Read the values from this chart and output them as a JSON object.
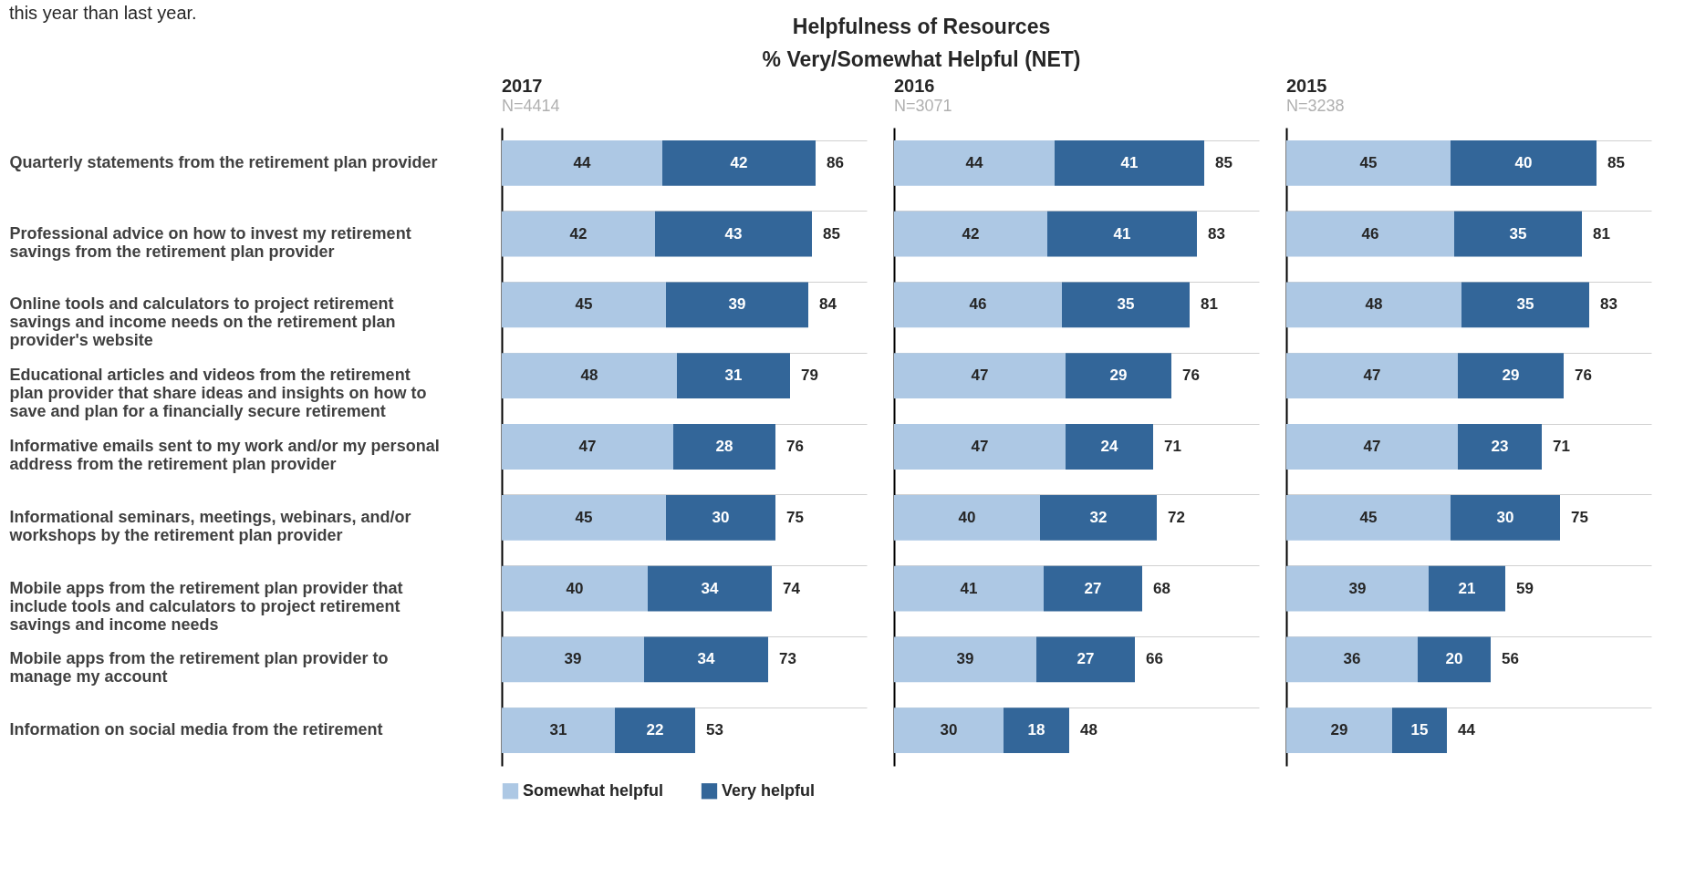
{
  "chart_data": [
    {
      "type": "bar",
      "orientation": "horizontal",
      "stacked": true,
      "title": "2017",
      "subtitle": "N=4414",
      "annotations": [
        "this year than last year.",
        "Helpfulness of Resources",
        "% Very/Somewhat Helpful (NET)"
      ],
      "categories": [
        "Quarterly statements from the retirement plan provider",
        "Professional advice on how to invest my retirement savings from the retirement plan provider",
        "Online tools and calculators to project retirement savings and income needs on the retirement plan provider's website",
        "Educational articles and videos from the retirement plan provider that share ideas and insights on how to save and plan for a financially secure retirement",
        "Informative emails sent to my work and/or my personal address from the retirement plan provider",
        "Informational seminars, meetings, webinars, and/or workshops by the retirement plan provider",
        "Mobile apps from the retirement plan provider that include tools and calculators to project retirement savings and income needs",
        "Mobile apps from the retirement plan provider to manage my account",
        "Information on social media from the retirement"
      ],
      "series": [
        {
          "name": "Somewhat helpful",
          "color": "#adc8e4",
          "values": [
            44,
            42,
            45,
            48,
            47,
            45,
            40,
            39,
            31
          ]
        },
        {
          "name": "Very helpful",
          "color": "#336699",
          "values": [
            42,
            43,
            39,
            31,
            28,
            30,
            34,
            34,
            22
          ]
        }
      ],
      "totals": [
        "86",
        "85",
        "84",
        "79",
        "76",
        "75",
        "74",
        "73",
        "53"
      ],
      "xlim": [
        0,
        100
      ],
      "data_labels": true,
      "grid": "y",
      "legend": "bottom",
      "tick_labels": "y"
    },
    {
      "type": "bar",
      "orientation": "horizontal",
      "stacked": true,
      "title": "2016",
      "subtitle": "N=3071",
      "categories": [
        null,
        null,
        null,
        null,
        null,
        null,
        null,
        null,
        null
      ],
      "series": [
        {
          "color": "#adc8e4",
          "values": [
            44,
            42,
            46,
            47,
            47,
            40,
            41,
            39,
            30
          ]
        },
        {
          "color": "#336699",
          "values": [
            41,
            41,
            35,
            29,
            24,
            32,
            27,
            27,
            18
          ]
        }
      ],
      "totals": [
        "85",
        "83",
        "81",
        "76",
        "71",
        "72",
        "68",
        "66",
        "48"
      ],
      "xlim": [
        0,
        100
      ],
      "data_labels": true,
      "grid": "y",
      "tick_labels": false
    },
    {
      "type": "bar",
      "orientation": "horizontal",
      "stacked": true,
      "title": "2015",
      "subtitle": "N=3238",
      "categories": [
        null,
        null,
        null,
        null,
        null,
        null,
        null,
        null,
        null
      ],
      "series": [
        {
          "color": "#adc8e4",
          "values": [
            45,
            46,
            48,
            47,
            47,
            45,
            39,
            36,
            29
          ]
        },
        {
          "color": "#336699",
          "values": [
            40,
            35,
            35,
            29,
            23,
            30,
            21,
            20,
            15
          ]
        }
      ],
      "totals": [
        "85",
        "81",
        "83",
        "76",
        "71",
        "75",
        "59",
        "56",
        "44"
      ],
      "xlim": [
        0,
        100
      ],
      "data_labels": true,
      "grid": "y",
      "tick_labels": false
    }
  ]
}
